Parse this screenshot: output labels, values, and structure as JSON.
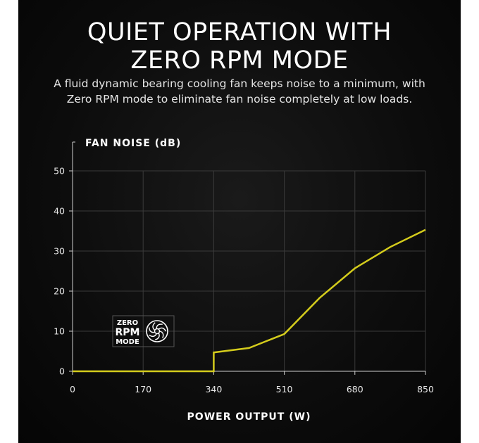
{
  "heading_line1": "QUIET OPERATION WITH",
  "heading_line2": "ZERO RPM MODE",
  "subtitle_line1": "A fluid dynamic bearing cooling fan keeps noise to a minimum, with",
  "subtitle_line2": "Zero RPM mode to eliminate fan noise completely at low loads.",
  "badge": {
    "line1": "ZERO",
    "line2": "RPM",
    "line3": "MODE",
    "icon": "fan-icon"
  },
  "colors": {
    "background": "#0c0c0c",
    "line": "#d4cc1c",
    "grid": "#3a3a3a",
    "text": "#ffffff"
  },
  "chart_data": {
    "type": "line",
    "title": "",
    "xlabel": "POWER OUTPUT (W)",
    "ylabel": "FAN NOISE (dB)",
    "xlim": [
      0,
      850
    ],
    "ylim": [
      0,
      50
    ],
    "xticks": [
      0,
      170,
      340,
      510,
      680,
      850
    ],
    "yticks": [
      0,
      10,
      20,
      30,
      40,
      50
    ],
    "grid": true,
    "series": [
      {
        "x": [
          0,
          340,
          340,
          425,
          510,
          595,
          680,
          765,
          850
        ],
        "y": [
          0,
          0,
          4.7,
          5.8,
          9.3,
          18.3,
          25.7,
          31,
          35.3
        ]
      }
    ]
  }
}
